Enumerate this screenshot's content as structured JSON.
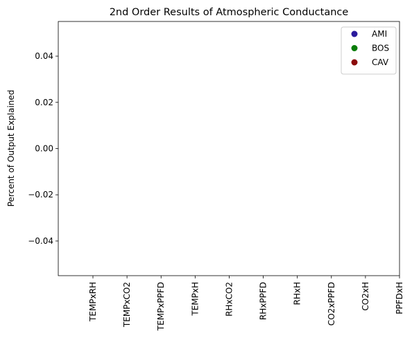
{
  "chart_data": {
    "type": "scatter",
    "title": "2nd Order Results of Atmospheric Conductance",
    "xlabel": "",
    "ylabel": "Percent of Output Explained",
    "categories": [
      "TEMPxRH",
      "TEMPxCO2",
      "TEMPxPPFD",
      "TEMPxH",
      "RHxCO2",
      "RHxPPFD",
      "RHxH",
      "CO2xPPFD",
      "CO2xH",
      "PPFDxH"
    ],
    "ylim": [
      -0.055,
      0.055
    ],
    "yticks": [
      -0.04,
      -0.02,
      0.0,
      0.02,
      0.04
    ],
    "ytick_labels": [
      "−0.04",
      "−0.02",
      "0.00",
      "0.02",
      "0.04"
    ],
    "grid": false,
    "legend_position": "top-right",
    "series": [
      {
        "name": "AMI",
        "color": "#2a1a9c",
        "values": []
      },
      {
        "name": "BOS",
        "color": "#0a7d0a",
        "values": []
      },
      {
        "name": "CAV",
        "color": "#8b0b0b",
        "values": []
      }
    ]
  }
}
